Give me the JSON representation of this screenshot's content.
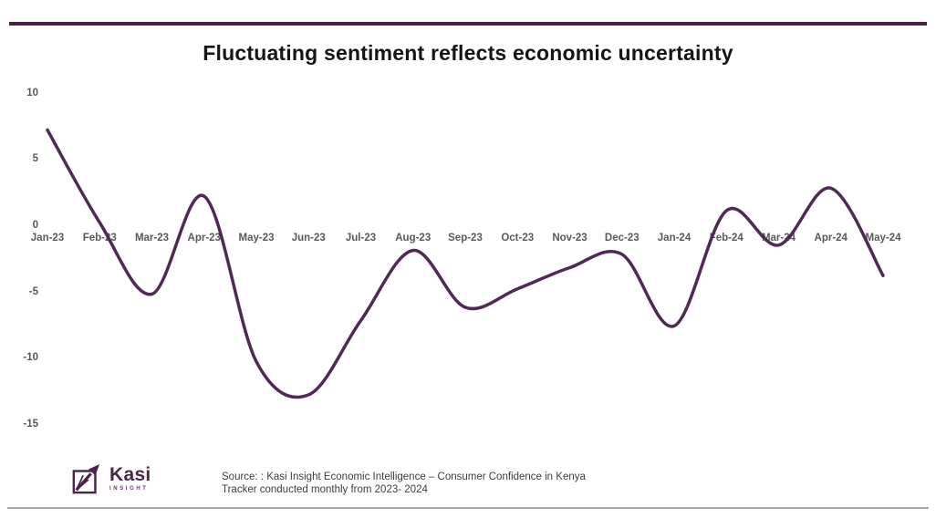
{
  "header": {
    "title": "Fluctuating sentiment reflects economic uncertainty"
  },
  "chart_data": {
    "type": "line",
    "title": "Fluctuating sentiment reflects economic uncertainty",
    "categories": [
      "Jan-23",
      "Feb-23",
      "Mar-23",
      "Apr-23",
      "May-23",
      "Jun-23",
      "Jul-23",
      "Aug-23",
      "Sep-23",
      "Oct-23",
      "Nov-23",
      "Dec-23",
      "Jan-24",
      "Feb-24",
      "Mar-24",
      "Apr-24",
      "May-24"
    ],
    "values": [
      7.2,
      0.2,
      -5.2,
      2.2,
      -10.3,
      -12.8,
      -7.2,
      -1.9,
      -6.2,
      -4.8,
      -3.2,
      -2.2,
      -7.6,
      1.1,
      -1.5,
      2.8,
      -3.8
    ],
    "xlabel": "",
    "ylabel": "",
    "ylim": [
      -15,
      10
    ],
    "y_ticks": [
      10,
      5,
      0,
      -5,
      -10,
      -15
    ],
    "grid": "off",
    "legend": "none",
    "line_color": "#4e2a54",
    "smooth": true
  },
  "footer": {
    "logo": {
      "brand": "Kasi",
      "sub": "INSIGHT"
    },
    "source_line1": "Source: : Kasi Insight Economic Intelligence – Consumer Confidence in Kenya",
    "source_line2": "Tracker conducted monthly from 2023- 2024"
  },
  "colors": {
    "accent_rule": "#4a2145",
    "axis_text": "#595959",
    "brand_purple": "#4d2449"
  }
}
